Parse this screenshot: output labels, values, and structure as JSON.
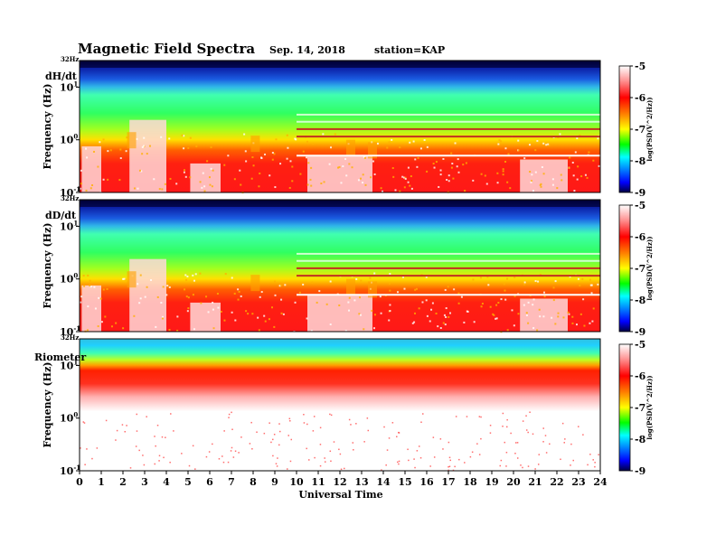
{
  "header": {
    "title": "Magnetic  Field  Spectra",
    "date": "Sep. 14, 2018",
    "station": "station=KAP"
  },
  "colors": {
    "scale": [
      "#000040",
      "#0000ff",
      "#00a0ff",
      "#00ffff",
      "#00ff00",
      "#ffff00",
      "#ff8000",
      "#ff0000",
      "#ffffff"
    ]
  },
  "chart_data": [
    {
      "type": "heatmap",
      "panel_label": "dH/dt",
      "top_freq_label": "32Hz",
      "ylabel": "Frequency  (Hz)",
      "ytick_labels": [
        {
          "base": "10",
          "exp": "1",
          "value": 10
        },
        {
          "base": "10",
          "exp": "0",
          "value": 1
        },
        {
          "base": "10",
          "exp": "-1",
          "value": 0.1
        }
      ],
      "colorbar": {
        "label": "log(PSD(V^2/Hz))",
        "ticks": [
          -5,
          -6,
          -7,
          -8,
          -9
        ],
        "range": [
          -9,
          -5
        ]
      },
      "xlim": [
        0,
        24
      ]
    },
    {
      "type": "heatmap",
      "panel_label": "dD/dt",
      "top_freq_label": "32Hz",
      "ylabel": "Frequency  (Hz)",
      "ytick_labels": [
        {
          "base": "10",
          "exp": "1",
          "value": 10
        },
        {
          "base": "10",
          "exp": "0",
          "value": 1
        },
        {
          "base": "10",
          "exp": "-1",
          "value": 0.1
        }
      ],
      "colorbar": {
        "label": "log(PSD(V^2/Hz))",
        "ticks": [
          -5,
          -6,
          -7,
          -8,
          -9
        ],
        "range": [
          -9,
          -5
        ]
      },
      "xlim": [
        0,
        24
      ]
    },
    {
      "type": "heatmap",
      "panel_label": "Riometer",
      "top_freq_label": "32Hz",
      "ylabel": "Frequency  (Hz)",
      "ytick_labels": [
        {
          "base": "10",
          "exp": "1",
          "value": 10
        },
        {
          "base": "10",
          "exp": "0",
          "value": 1
        },
        {
          "base": "10",
          "exp": "-1",
          "value": 0.1
        }
      ],
      "colorbar": {
        "label": "log(PSD(V^2/Hz))",
        "ticks": [
          -5,
          -6,
          -7,
          -8,
          -9
        ],
        "range": [
          -9,
          -5
        ]
      },
      "xlim": [
        0,
        24
      ]
    }
  ],
  "xaxis": {
    "label": "Universal Time",
    "ticks": [
      "0",
      "1",
      "2",
      "3",
      "4",
      "5",
      "6",
      "7",
      "8",
      "9",
      "10",
      "11",
      "12",
      "13",
      "14",
      "15",
      "16",
      "17",
      "18",
      "19",
      "20",
      "21",
      "22",
      "23",
      "24"
    ]
  }
}
